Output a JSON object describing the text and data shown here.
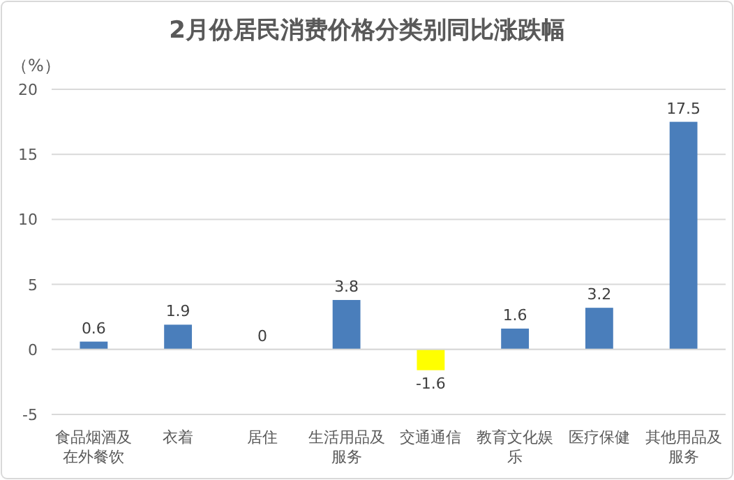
{
  "chart_data": {
    "type": "bar",
    "title": "2月份居民消费价格分类别同比涨跌幅",
    "ylabel": "（%）",
    "categories": [
      "食品烟酒及在外餐饮",
      "衣着",
      "居住",
      "生活用品及服务",
      "交通通信",
      "教育文化娱乐",
      "医疗保健",
      "其他用品及服务"
    ],
    "values": [
      0.6,
      1.9,
      0,
      3.8,
      -1.6,
      1.6,
      3.2,
      17.5
    ],
    "colors": [
      "#4a7ebb",
      "#4a7ebb",
      "#4a7ebb",
      "#4a7ebb",
      "#ffff00",
      "#4a7ebb",
      "#4a7ebb",
      "#4a7ebb"
    ],
    "ylim": [
      -5,
      20
    ],
    "yticks": [
      -5,
      0,
      5,
      10,
      15,
      20
    ],
    "grid": "y",
    "data_labels": true
  }
}
